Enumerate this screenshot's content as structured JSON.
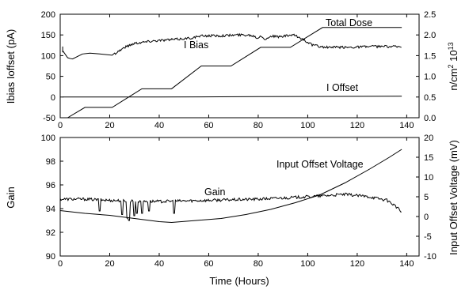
{
  "chart_data": [
    {
      "type": "line",
      "panel": "top",
      "y_left_label": "Ibias Ioffset (pA)",
      "y_left_ticks": [
        -50,
        0,
        50,
        100,
        150,
        200
      ],
      "ylim_left": [
        -50,
        200
      ],
      "y_right_label": "n/cm² 10¹³",
      "y_right_label_parts": {
        "main": "n/cm",
        "sup1": "2",
        "mid": " 10",
        "sup2": "13"
      },
      "y_right_ticks": [
        "0.0",
        "0.5",
        "1.0",
        "1.5",
        "2.0",
        "2.5"
      ],
      "ylim_right": [
        0.0,
        2.5
      ],
      "x_ticks": [
        0,
        20,
        40,
        60,
        80,
        100,
        120,
        140
      ],
      "xlim": [
        0,
        145
      ],
      "grid": false,
      "annotations": [
        "Total Dose",
        "I Bias",
        "I Offset"
      ],
      "series": [
        {
          "axis": "right",
          "points": [
            [
              3,
              0.0
            ],
            [
              10,
              0.25
            ],
            [
              21,
              0.25
            ],
            [
              33,
              0.7
            ],
            [
              45,
              0.7
            ],
            [
              57,
              1.25
            ],
            [
              69,
              1.25
            ],
            [
              81,
              1.7
            ],
            [
              93,
              1.7
            ],
            [
              106,
              2.18
            ],
            [
              138,
              2.18
            ]
          ]
        },
        {
          "axis": "left",
          "noise": 3,
          "noise_start": 22,
          "points": [
            [
              1,
              122
            ],
            [
              1,
              108
            ],
            [
              1,
              112
            ],
            [
              3,
              95
            ],
            [
              4,
              93
            ],
            [
              5,
              92
            ],
            [
              7,
              98
            ],
            [
              9,
              104
            ],
            [
              12,
              106
            ],
            [
              16,
              104
            ],
            [
              21,
              101
            ],
            [
              26,
              120
            ],
            [
              30,
              130
            ],
            [
              38,
              136
            ],
            [
              46,
              139
            ],
            [
              52,
              142
            ],
            [
              58,
              148
            ],
            [
              65,
              148
            ],
            [
              72,
              150
            ],
            [
              76,
              150
            ],
            [
              78,
              148
            ],
            [
              80,
              142
            ],
            [
              81,
              150
            ],
            [
              83,
              138
            ],
            [
              85,
              148
            ],
            [
              88,
              145
            ],
            [
              92,
              148
            ],
            [
              94,
              150
            ],
            [
              98,
              140
            ],
            [
              102,
              125
            ],
            [
              107,
              120
            ],
            [
              115,
              120
            ],
            [
              125,
              122
            ],
            [
              138,
              122
            ]
          ]
        },
        {
          "axis": "left",
          "points": [
            [
              1,
              0
            ],
            [
              40,
              0
            ],
            [
              80,
              1
            ],
            [
              138,
              2
            ]
          ]
        }
      ]
    },
    {
      "type": "line",
      "panel": "bottom",
      "y_left_label": "Gain",
      "y_left_ticks": [
        90,
        92,
        94,
        96,
        98,
        100
      ],
      "ylim_left": [
        90,
        100
      ],
      "y_right_label": "Input Offset Voltage (mV)",
      "y_right_ticks": [
        -10,
        -5,
        0,
        5,
        10,
        15,
        20
      ],
      "ylim_right": [
        -10,
        20
      ],
      "x_ticks": [
        0,
        20,
        40,
        60,
        80,
        100,
        120,
        140
      ],
      "xlim": [
        0,
        145
      ],
      "xlabel": "Time (Hours)",
      "grid": false,
      "annotations": [
        "Input Offset Voltage",
        "Gain"
      ],
      "series": [
        {
          "axis": "left",
          "noise": 0.12,
          "points": [
            [
              0,
              94.8
            ],
            [
              10,
              94.8
            ],
            [
              20,
              94.7
            ],
            [
              40,
              94.6
            ],
            [
              60,
              94.7
            ],
            [
              80,
              94.8
            ],
            [
              100,
              95.0
            ],
            [
              115,
              95.2
            ],
            [
              125,
              95.0
            ],
            [
              132,
              94.7
            ],
            [
              135,
              94.3
            ],
            [
              138,
              93.7
            ]
          ],
          "dips": [
            [
              16,
              93.8
            ],
            [
              25,
              93.5
            ],
            [
              27,
              93.2
            ],
            [
              28,
              93.0
            ],
            [
              30,
              93.4
            ],
            [
              31,
              93.6
            ],
            [
              33,
              93.6
            ],
            [
              36,
              93.8
            ],
            [
              46,
              93.6
            ]
          ]
        },
        {
          "axis": "right",
          "points": [
            [
              0,
              1.5
            ],
            [
              10,
              0.8
            ],
            [
              20,
              0.3
            ],
            [
              30,
              -0.5
            ],
            [
              40,
              -1.3
            ],
            [
              45,
              -1.5
            ],
            [
              55,
              -1.0
            ],
            [
              65,
              -0.5
            ],
            [
              75,
              0.5
            ],
            [
              85,
              1.8
            ],
            [
              95,
              3.5
            ],
            [
              105,
              5.5
            ],
            [
              115,
              8.5
            ],
            [
              125,
              12.0
            ],
            [
              133,
              15.0
            ],
            [
              138,
              17.0
            ]
          ]
        }
      ]
    }
  ]
}
